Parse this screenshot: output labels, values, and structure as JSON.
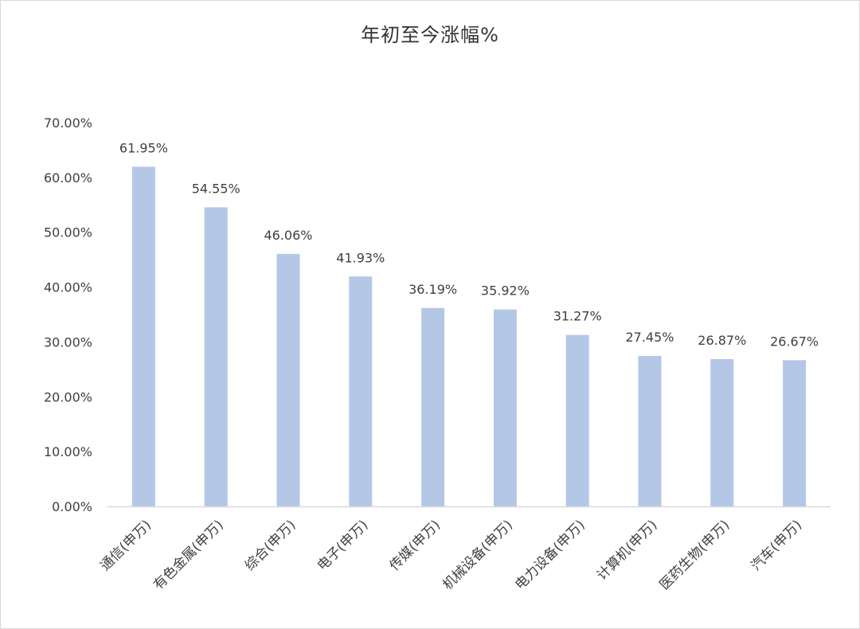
{
  "chart_data": {
    "type": "bar",
    "title": "年初至今涨幅%",
    "categories": [
      "通信(申万)",
      "有色金属(申万)",
      "综合(申万)",
      "电子(申万)",
      "传媒(申万)",
      "机械设备(申万)",
      "电力设备(申万)",
      "计算机(申万)",
      "医药生物(申万)",
      "汽车(申万)"
    ],
    "values": [
      61.95,
      54.55,
      46.06,
      41.93,
      36.19,
      35.92,
      31.27,
      27.45,
      26.87,
      26.67
    ],
    "data_labels": [
      "61.95%",
      "54.55%",
      "46.06%",
      "41.93%",
      "36.19%",
      "35.92%",
      "31.27%",
      "27.45%",
      "26.87%",
      "26.67%"
    ],
    "y_ticks": [
      0,
      10,
      20,
      30,
      40,
      50,
      60,
      70
    ],
    "y_tick_labels": [
      "0.00%",
      "10.00%",
      "20.00%",
      "30.00%",
      "40.00%",
      "50.00%",
      "60.00%",
      "70.00%"
    ],
    "ylim": [
      0,
      70
    ],
    "grid": false,
    "bar_color": "#b4c7e7",
    "axis_color": "#d9d9d9"
  }
}
